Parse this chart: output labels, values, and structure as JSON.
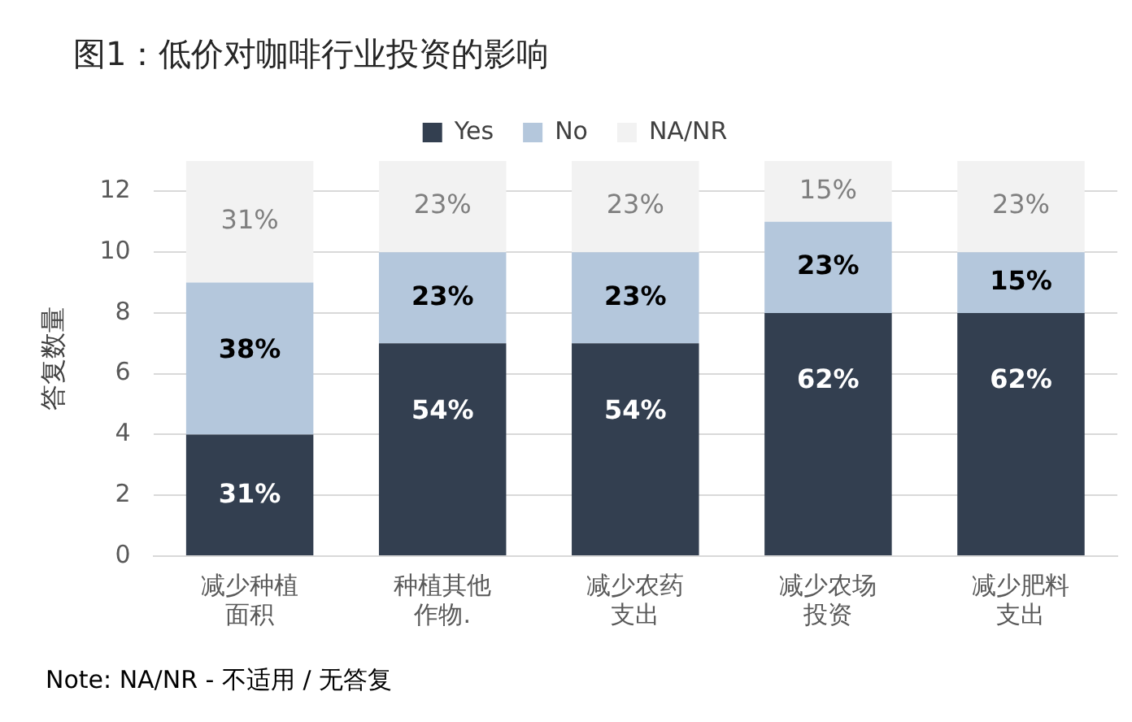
{
  "chart_data": {
    "type": "bar",
    "title": "图1：低价对咖啡行业投资的影响",
    "ylabel": "答复数量",
    "annotations": [
      "Note: NA/NR - 不适用 / 无答复",
      {
        "text": "31%",
        "x": "减少种植面积",
        "y": 4
      },
      {
        "text": "38%",
        "x": "减少种植面积",
        "y": 9
      },
      {
        "text": "31%",
        "x": "减少种植面积",
        "y": 13
      },
      {
        "text": "54%",
        "x": "种植其他作物.",
        "y": 7
      },
      {
        "text": "23%",
        "x": "种植其他作物.",
        "y": 10
      },
      {
        "text": "23%",
        "x": "种植其他作物.",
        "y": 13
      },
      {
        "text": "54%",
        "x": "减少农药支出",
        "y": 7
      },
      {
        "text": "23%",
        "x": "减少农药支出",
        "y": 10
      },
      {
        "text": "23%",
        "x": "减少农药支出",
        "y": 13
      },
      {
        "text": "62%",
        "x": "减少农场投资",
        "y": 8
      },
      {
        "text": "23%",
        "x": "减少农场投资",
        "y": 11
      },
      {
        "text": "15%",
        "x": "减少农场投资",
        "y": 13
      },
      {
        "text": "62%",
        "x": "减少肥料支出",
        "y": 8
      },
      {
        "text": "15%",
        "x": "减少肥料支出",
        "y": 10
      },
      {
        "text": "23%",
        "x": "减少肥料支出",
        "y": 13
      }
    ],
    "categories": [
      "减少种植面积",
      "种植其他作物.",
      "减少农药支出",
      "减少农场投资",
      "减少肥料支出"
    ],
    "series": [
      {
        "name": "Yes",
        "color": "#333f50",
        "values": [
          4,
          7,
          7,
          8,
          8
        ]
      },
      {
        "name": "No",
        "color": "#b4c7dc",
        "values": [
          5,
          3,
          3,
          3,
          2
        ]
      },
      {
        "name": "NA/NR",
        "color": "#f2f2f2",
        "values": [
          4,
          3,
          3,
          2,
          3
        ]
      }
    ],
    "stacked": true,
    "ylim": [
      0,
      13
    ],
    "yticks": [
      0,
      2,
      4,
      6,
      8,
      10,
      12
    ],
    "grid": "y",
    "legend": "top"
  }
}
